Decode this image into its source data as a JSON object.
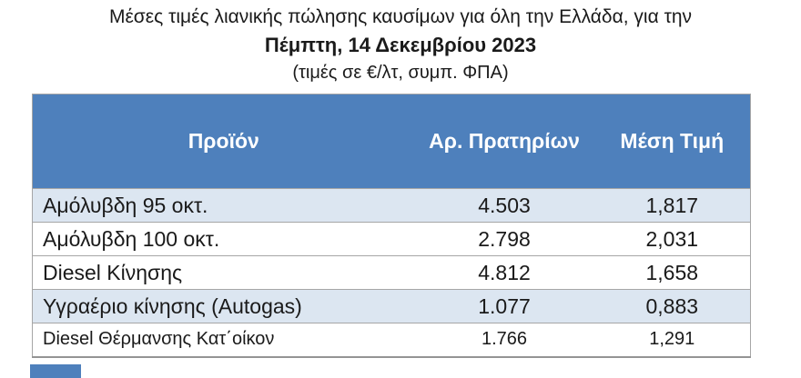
{
  "title": {
    "line1": "Μέσες τιμές λιανικής πώλησης καυσίμων για όλη την Ελλάδα, για την",
    "line2": "Πέμπτη, 14 Δεκεμβρίου 2023",
    "line3": "(τιμές σε €/λτ, συμπ. ΦΠΑ)"
  },
  "table": {
    "columns": [
      "Προϊόν",
      "Αρ. Πρατηρίων",
      "Μέση Τιμή"
    ],
    "rows": [
      {
        "product": "Αμόλυβδη 95 οκτ.",
        "stations": "4.503",
        "price": "1,817"
      },
      {
        "product": "Αμόλυβδη 100 οκτ.",
        "stations": "2.798",
        "price": "2,031"
      },
      {
        "product": "Diesel Κίνησης",
        "stations": "4.812",
        "price": "1,658"
      },
      {
        "product": "Υγραέριο κίνησης (Autogas)",
        "stations": "1.077",
        "price": "0,883"
      },
      {
        "product": "Diesel Θέρμανσης Κατ΄οίκον",
        "stations": "1.766",
        "price": "1,291"
      }
    ]
  },
  "colors": {
    "header_bg": "#4E80BC",
    "header_text": "#FFFFFF",
    "row_shaded_bg": "#DCE6F1",
    "row_bg": "#FFFFFF",
    "border": "#A6A6A6",
    "text": "#1A1A1A"
  }
}
